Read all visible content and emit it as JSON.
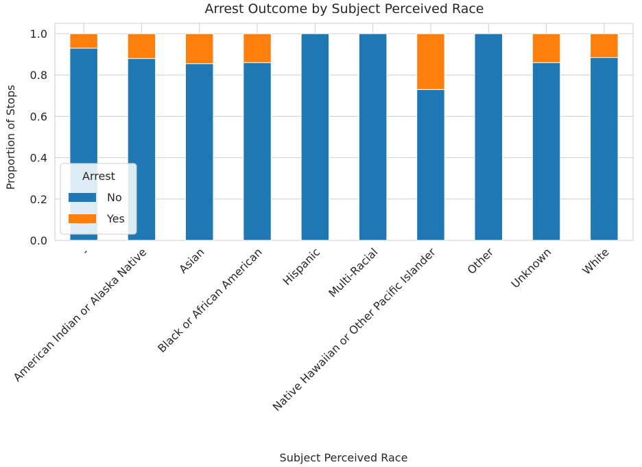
{
  "chart_data": {
    "type": "bar",
    "stacked": true,
    "title": "Arrest Outcome by Subject Perceived Race",
    "xlabel": "Subject Perceived Race",
    "ylabel": "Proportion of Stops",
    "ylim": [
      0,
      1.05
    ],
    "yticks": [
      "0.0",
      "0.2",
      "0.4",
      "0.6",
      "0.8",
      "1.0"
    ],
    "ytick_values": [
      0,
      0.2,
      0.4,
      0.6,
      0.8,
      1.0
    ],
    "grid": true,
    "categories": [
      "-",
      "American Indian or Alaska Native",
      "Asian",
      "Black or African American",
      "Hispanic",
      "Multi-Racial",
      "Native Hawaiian or Other Pacific Islander",
      "Other",
      "Unknown",
      "White"
    ],
    "series": [
      {
        "name": "No",
        "color": "#1f77b4",
        "values": [
          0.93,
          0.88,
          0.855,
          0.86,
          1.0,
          1.0,
          0.73,
          1.0,
          0.86,
          0.885
        ]
      },
      {
        "name": "Yes",
        "color": "#ff7f0e",
        "values": [
          0.07,
          0.12,
          0.145,
          0.14,
          0.0,
          0.0,
          0.27,
          0.0,
          0.14,
          0.115
        ]
      }
    ],
    "legend": {
      "title": "Arrest",
      "placement": "center-left"
    }
  }
}
